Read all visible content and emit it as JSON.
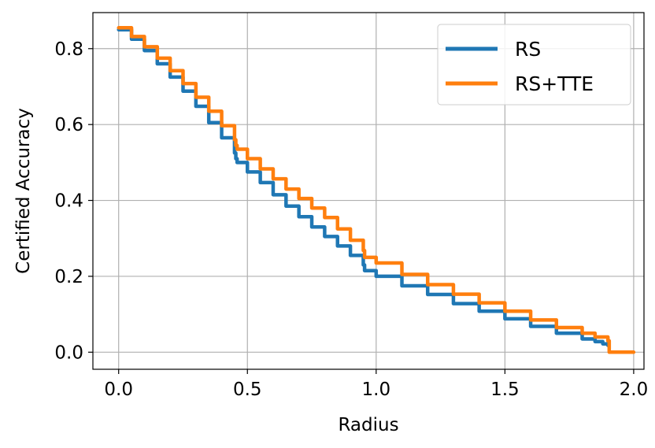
{
  "chart_data": {
    "type": "line",
    "title": "",
    "xlabel": "Radius",
    "ylabel": "Certified Accuracy",
    "xlim": [
      -0.1,
      2.04
    ],
    "ylim": [
      -0.045,
      0.895
    ],
    "grid": true,
    "legend_position": "top-right",
    "x_ticks": [
      0.0,
      0.5,
      1.0,
      1.5,
      2.0
    ],
    "x_tick_labels": [
      "0.0",
      "0.5",
      "1.0",
      "1.5",
      "2.0"
    ],
    "y_ticks": [
      0.0,
      0.2,
      0.4,
      0.6,
      0.8
    ],
    "y_tick_labels": [
      "0.0",
      "0.2",
      "0.4",
      "0.6",
      "0.8"
    ],
    "series": [
      {
        "name": "RS",
        "color": "#1f77b4",
        "x": [
          0.0,
          0.05,
          0.1,
          0.15,
          0.2,
          0.25,
          0.3,
          0.35,
          0.4,
          0.45,
          0.455,
          0.46,
          0.5,
          0.55,
          0.6,
          0.65,
          0.7,
          0.75,
          0.8,
          0.85,
          0.9,
          0.95,
          0.955,
          1.0,
          1.1,
          1.2,
          1.3,
          1.4,
          1.5,
          1.6,
          1.7,
          1.8,
          1.85,
          1.88,
          1.9
        ],
        "y": [
          0.85,
          0.825,
          0.795,
          0.76,
          0.725,
          0.688,
          0.648,
          0.605,
          0.565,
          0.525,
          0.51,
          0.5,
          0.475,
          0.447,
          0.415,
          0.385,
          0.357,
          0.33,
          0.305,
          0.28,
          0.255,
          0.23,
          0.215,
          0.2,
          0.175,
          0.152,
          0.128,
          0.108,
          0.088,
          0.068,
          0.05,
          0.035,
          0.028,
          0.022,
          0.018
        ]
      },
      {
        "name": "RS+TTE",
        "color": "#ff7f0e",
        "x": [
          0.0,
          0.05,
          0.1,
          0.15,
          0.2,
          0.25,
          0.3,
          0.35,
          0.4,
          0.45,
          0.455,
          0.46,
          0.5,
          0.55,
          0.6,
          0.65,
          0.7,
          0.75,
          0.8,
          0.85,
          0.9,
          0.95,
          0.955,
          1.0,
          1.1,
          1.2,
          1.3,
          1.4,
          1.5,
          1.6,
          1.7,
          1.8,
          1.85,
          1.9,
          1.905,
          1.95,
          2.0
        ],
        "y": [
          0.855,
          0.832,
          0.805,
          0.775,
          0.742,
          0.708,
          0.672,
          0.635,
          0.597,
          0.56,
          0.545,
          0.535,
          0.51,
          0.483,
          0.457,
          0.43,
          0.405,
          0.38,
          0.355,
          0.325,
          0.295,
          0.268,
          0.25,
          0.235,
          0.205,
          0.178,
          0.153,
          0.13,
          0.108,
          0.085,
          0.065,
          0.05,
          0.04,
          0.03,
          0.0,
          0.0,
          0.0
        ]
      }
    ]
  }
}
